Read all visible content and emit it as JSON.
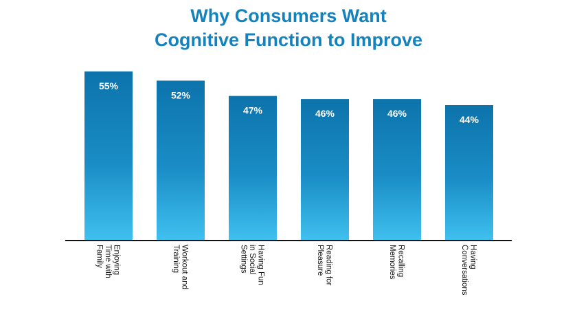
{
  "chart_data": {
    "type": "bar",
    "title_lines": [
      "Why Consumers Want",
      "Cognitive Function to Improve"
    ],
    "xlabel": "",
    "ylabel": "",
    "ylim": [
      0,
      60
    ],
    "grid": false,
    "legend": "none",
    "categories": [
      [
        "Enjoying",
        "Time with",
        "Family"
      ],
      [
        "Workout and",
        "Training"
      ],
      [
        "Having Fun",
        "in Social",
        "Settings"
      ],
      [
        "Reading for",
        "Pleasure"
      ],
      [
        "Recalling",
        "Memories"
      ],
      [
        "Having",
        "Conversations"
      ]
    ],
    "values": [
      55,
      52,
      47,
      46,
      46,
      44
    ],
    "data_labels": [
      "55%",
      "52%",
      "47%",
      "46%",
      "46%",
      "44%"
    ],
    "colors": {
      "title": "#1482bd",
      "bar_top": "#0d73ab",
      "bar_mid": "#1a8dc6",
      "bar_bottom": "#3fc0ee",
      "axis": "#111111",
      "data_label": "#ffffff"
    }
  }
}
